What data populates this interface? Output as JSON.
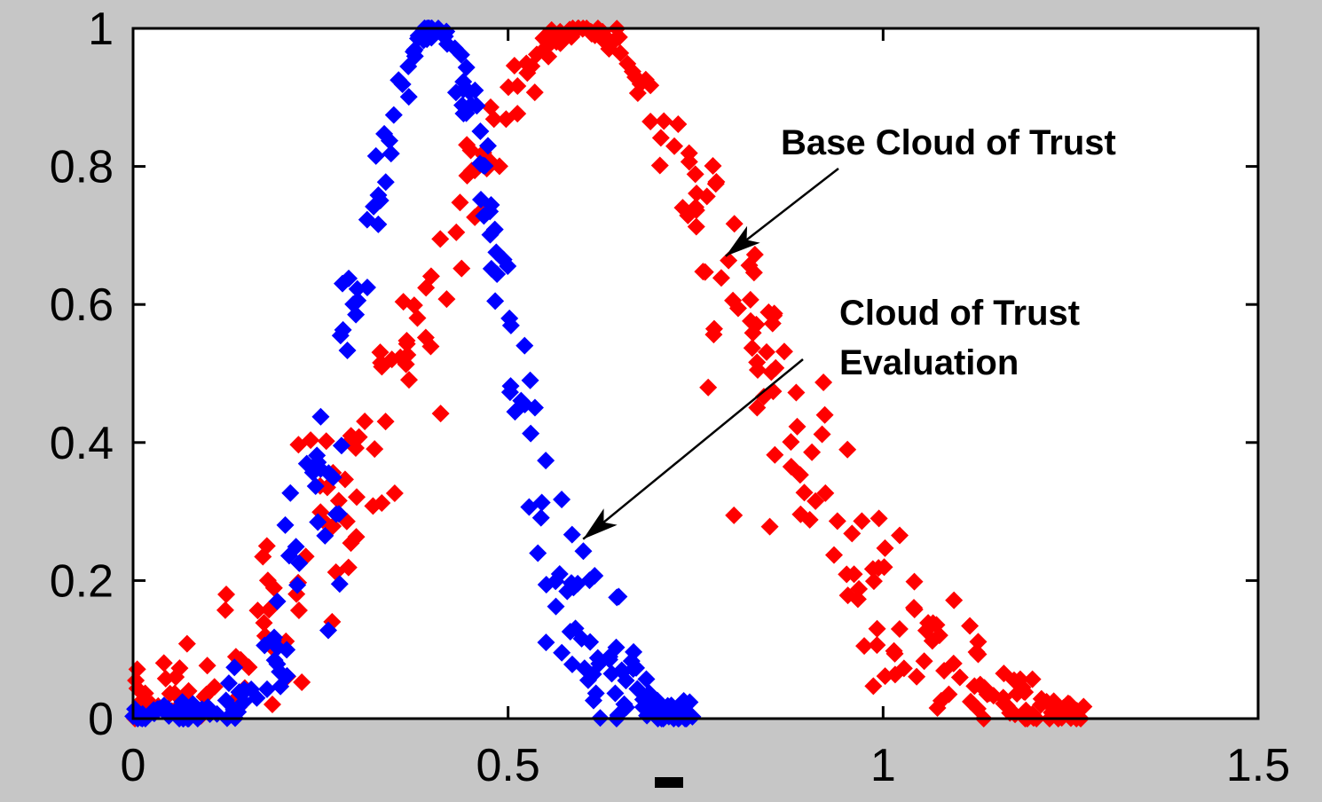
{
  "chart_data": {
    "type": "scatter",
    "title": "",
    "xlabel": "",
    "ylabel": "",
    "xlim": [
      0,
      1.5
    ],
    "ylim": [
      0,
      1
    ],
    "x_ticks": [
      "0",
      "0.5",
      "1",
      "1.5"
    ],
    "y_ticks": [
      "0",
      "0.2",
      "0.4",
      "0.6",
      "0.8",
      "1"
    ],
    "grid": false,
    "marker": "diamond",
    "series": [
      {
        "color": "#0000ff",
        "shape": "gaussian-cloud",
        "ex": 0.4,
        "en": 0.1,
        "x_range": [
          0.0,
          0.75
        ],
        "points": 260
      },
      {
        "color": "#ff0000",
        "shape": "gaussian-cloud",
        "ex": 0.6,
        "en": 0.21,
        "x_range": [
          0.0,
          1.27
        ],
        "points": 340
      }
    ],
    "annotations": [
      {
        "text": "Base Cloud of Trust",
        "lines": [
          "Base Cloud of Trust"
        ],
        "points_to": {
          "x": 0.79,
          "y": 0.67
        }
      },
      {
        "text": "Cloud of Trust Evaluation",
        "lines": [
          "Cloud of Trust",
          "Evaluation"
        ],
        "points_to": {
          "x": 0.6,
          "y": 0.26
        }
      }
    ]
  }
}
